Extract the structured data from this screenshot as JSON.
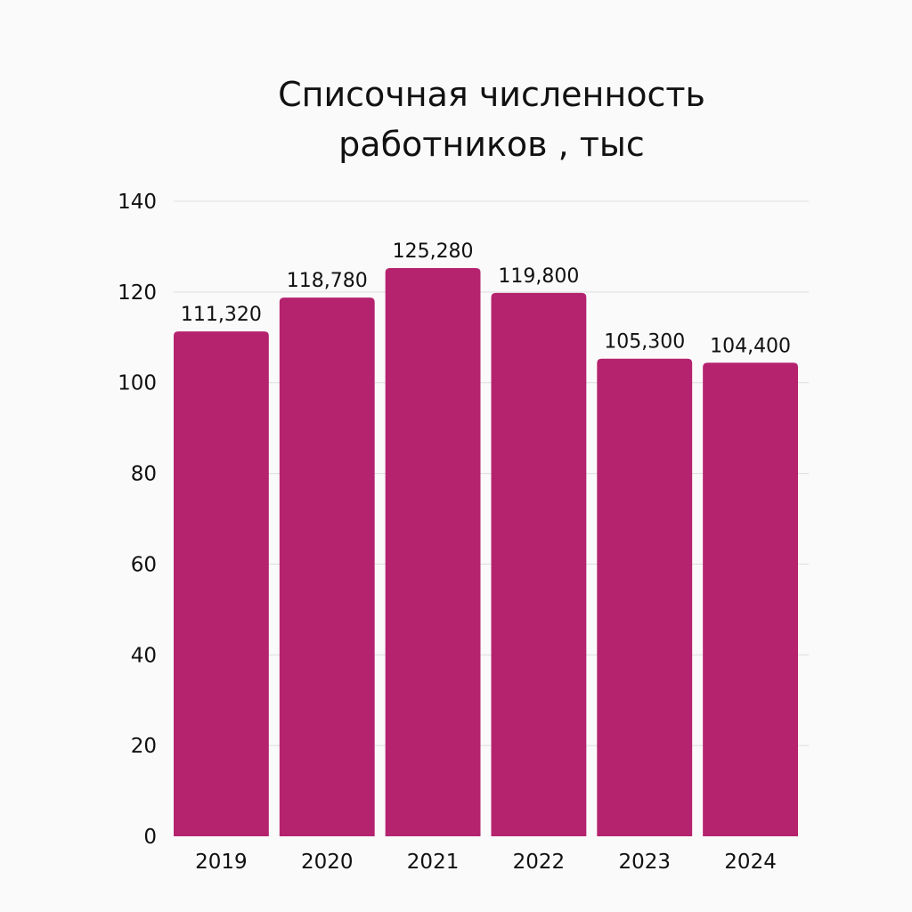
{
  "chart_data": {
    "type": "bar",
    "title_lines": [
      "Списочная численность",
      "работников , тыс"
    ],
    "categories": [
      "2019",
      "2020",
      "2021",
      "2022",
      "2023",
      "2024"
    ],
    "values": [
      111.32,
      118.78,
      125.28,
      119.8,
      105.3,
      104.4
    ],
    "data_labels": [
      "111,320",
      "118,780",
      "125,280",
      "119,800",
      "105,300",
      "104,400"
    ],
    "y_ticks": [
      "0",
      "20",
      "40",
      "60",
      "80",
      "100",
      "120",
      "140"
    ],
    "ylim": [
      0,
      140
    ],
    "grid": true,
    "xlabel": "",
    "ylabel": "",
    "bar_color": "#b5236f",
    "grid_color": "#dddddd",
    "background": "#fafafa"
  }
}
